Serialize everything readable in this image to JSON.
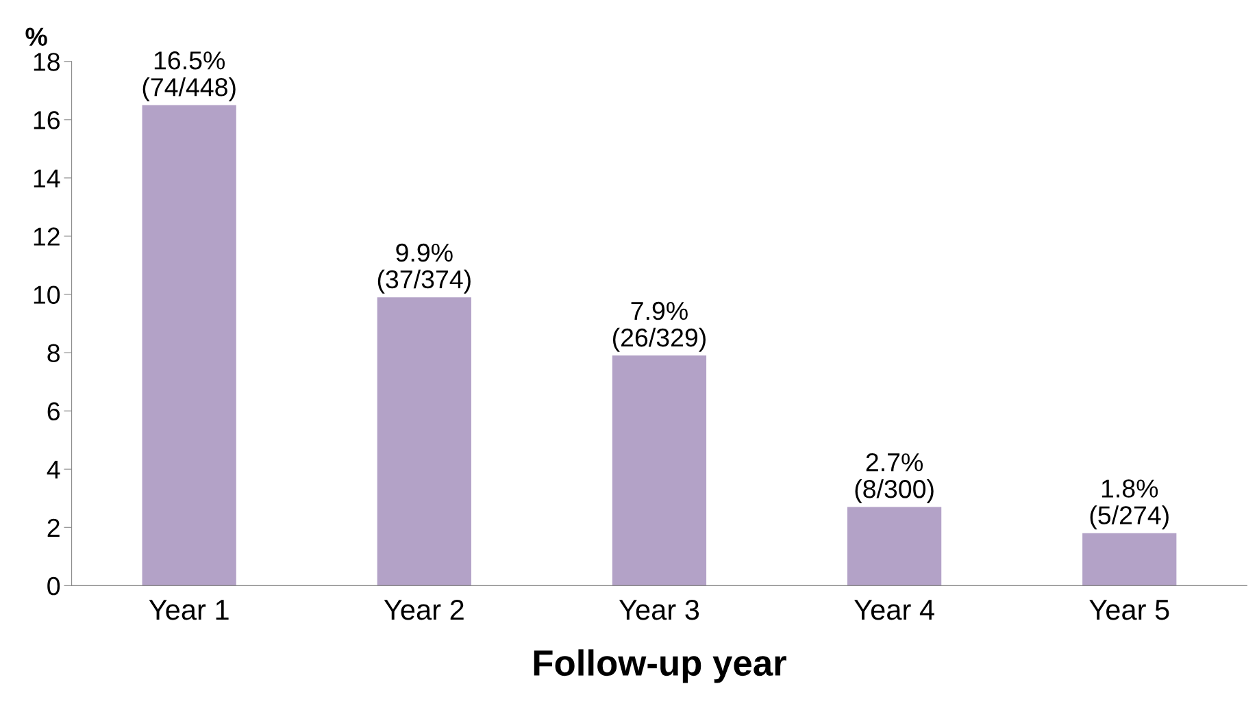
{
  "chart_data": {
    "type": "bar",
    "xlabel": "Follow-up year",
    "ylabel": "%",
    "categories": [
      "Year 1",
      "Year 2",
      "Year 3",
      "Year 4",
      "Year 5"
    ],
    "values": [
      16.5,
      9.9,
      7.9,
      2.7,
      1.8
    ],
    "value_labels": [
      "16.5%\n(74/448)",
      "9.9%\n(37/374)",
      "7.9%\n(26/329)",
      "2.7%\n(8/300)",
      "1.8%\n(5/274)"
    ],
    "color": "#b3a2c7",
    "ylim": [
      0,
      18
    ],
    "yticks": [
      0,
      2,
      4,
      6,
      8,
      10,
      12,
      14,
      16,
      18
    ],
    "grid": false,
    "legend": false
  }
}
